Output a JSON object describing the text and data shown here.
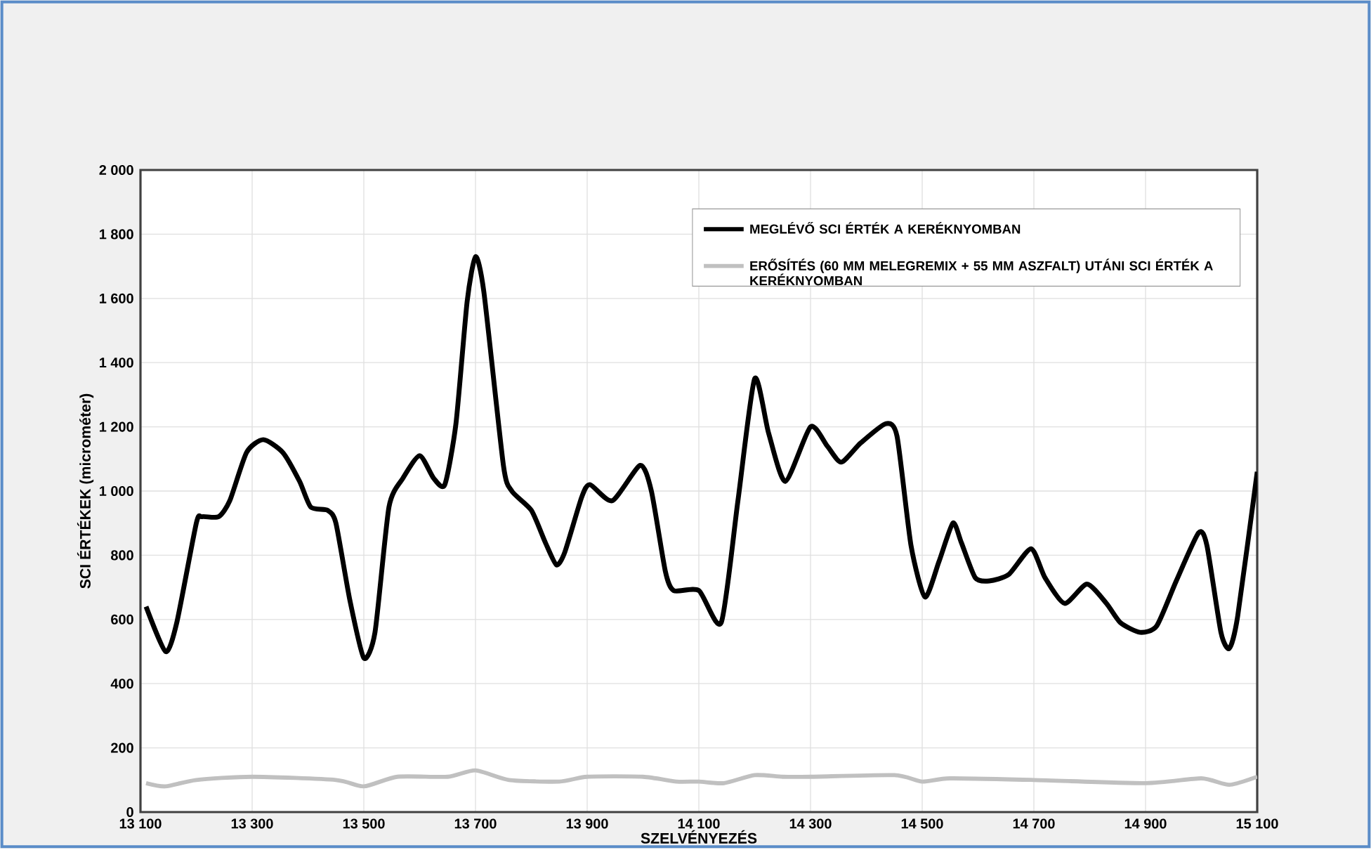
{
  "chart_data": {
    "type": "line",
    "xlabel": "SZELVÉNYEZÉS",
    "ylabel": "SCI ÉRTÉKEK (microméter)",
    "xlim": [
      13100,
      15100
    ],
    "ylim": [
      0,
      2000
    ],
    "xticks": [
      {
        "value": 13100,
        "label": "13 100"
      },
      {
        "value": 13300,
        "label": "13 300"
      },
      {
        "value": 13500,
        "label": "13 500"
      },
      {
        "value": 13700,
        "label": "13 700"
      },
      {
        "value": 13900,
        "label": "13 900"
      },
      {
        "value": 14100,
        "label": "14 100"
      },
      {
        "value": 14300,
        "label": "14 300"
      },
      {
        "value": 14500,
        "label": "14 500"
      },
      {
        "value": 14700,
        "label": "14 700"
      },
      {
        "value": 14900,
        "label": "14 900"
      },
      {
        "value": 15100,
        "label": "15 100"
      }
    ],
    "yticks": [
      0,
      200,
      400,
      600,
      800,
      {
        "value": 1000,
        "label": "1 000"
      },
      {
        "value": 1200,
        "label": "1 200"
      },
      {
        "value": 1400,
        "label": "1 400"
      },
      {
        "value": 1600,
        "label": "1 600"
      },
      {
        "value": 1800,
        "label": "1 800"
      },
      {
        "value": 2000,
        "label": "2 000"
      }
    ],
    "grid": true,
    "legend": "top right",
    "marker": "none",
    "line_style": "solid",
    "series": [
      {
        "name": "MEGLÉVŐ SCI ÉRTÉK A KERÉKNYOMBAN",
        "color": "#000000",
        "x": [
          13110,
          13145,
          13165,
          13200,
          13210,
          13240,
          13260,
          13290,
          13320,
          13355,
          13385,
          13405,
          13435,
          13450,
          13475,
          13500,
          13520,
          13545,
          13570,
          13600,
          13625,
          13645,
          13665,
          13685,
          13700,
          13715,
          13750,
          13765,
          13800,
          13825,
          13845,
          13860,
          13890,
          13905,
          13945,
          13995,
          14015,
          14040,
          14055,
          14100,
          14140,
          14170,
          14200,
          14225,
          14255,
          14300,
          14330,
          14355,
          14390,
          14435,
          14455,
          14480,
          14505,
          14530,
          14555,
          14570,
          14595,
          14620,
          14655,
          14695,
          14720,
          14755,
          14795,
          14830,
          14855,
          14890,
          14920,
          14955,
          14995,
          15010,
          15035,
          15050,
          15065,
          15100
        ],
        "values": [
          640,
          500,
          590,
          900,
          920,
          920,
          970,
          1120,
          1160,
          1120,
          1030,
          950,
          940,
          900,
          660,
          480,
          560,
          950,
          1040,
          1110,
          1040,
          1020,
          1210,
          1590,
          1730,
          1620,
          1080,
          1000,
          940,
          840,
          770,
          810,
          980,
          1020,
          970,
          1080,
          1000,
          750,
          690,
          690,
          590,
          970,
          1350,
          1180,
          1030,
          1200,
          1140,
          1090,
          1150,
          1210,
          1170,
          830,
          670,
          780,
          900,
          840,
          730,
          720,
          740,
          820,
          730,
          650,
          710,
          650,
          590,
          560,
          580,
          720,
          870,
          830,
          560,
          510,
          610,
          1060
        ]
      },
      {
        "name": "ERŐSÍTÉS (60 MM MELEGREMIX + 55 MM ASZFALT) UTÁNI SCI ÉRTÉK A KERÉKNYOMBAN",
        "color": "#c0c0c0",
        "x": [
          13110,
          13145,
          13200,
          13300,
          13450,
          13500,
          13560,
          13650,
          13700,
          13760,
          13850,
          13900,
          14000,
          14060,
          14100,
          14145,
          14200,
          14250,
          14300,
          14450,
          14500,
          14550,
          14700,
          14900,
          15000,
          15050,
          15100
        ],
        "values": [
          90,
          80,
          100,
          110,
          100,
          80,
          110,
          110,
          130,
          100,
          95,
          110,
          110,
          95,
          95,
          90,
          115,
          110,
          110,
          115,
          95,
          105,
          100,
          90,
          105,
          85,
          110
        ]
      }
    ]
  }
}
